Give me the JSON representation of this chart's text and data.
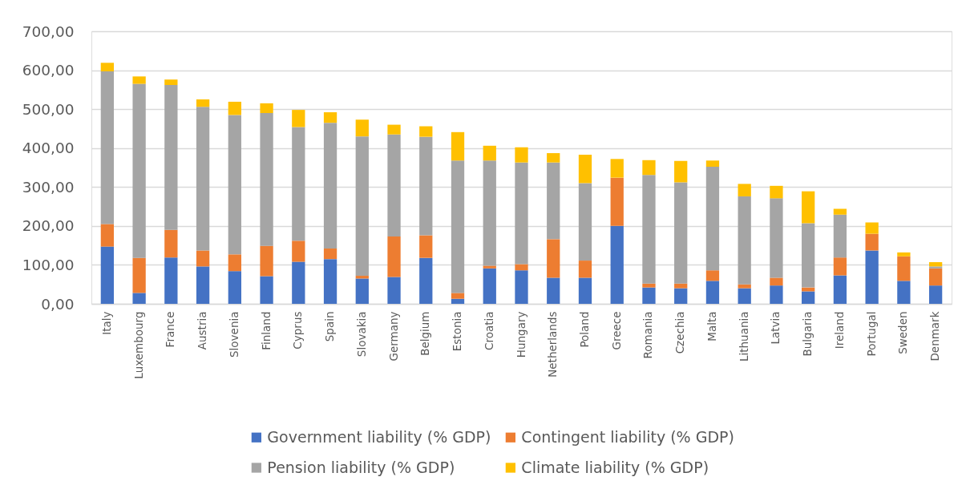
{
  "chart_data": {
    "type": "bar",
    "stacked": true,
    "categories": [
      "Italy",
      "Luxembourg",
      "France",
      "Austria",
      "Slovenia",
      "Finland",
      "Cyprus",
      "Spain",
      "Slovakia",
      "Germany",
      "Belgium",
      "Estonia",
      "Croatia",
      "Hungary",
      "Netherlands",
      "Poland",
      "Greece",
      "Romania",
      "Czechia",
      "Malta",
      "Lithuania",
      "Latvia",
      "Bulgaria",
      "Ireland",
      "Portugal",
      "Sweden",
      "Denmark"
    ],
    "series": [
      {
        "name": "Government liability (% GDP)",
        "color": "#4472c4",
        "values": [
          147,
          28,
          119,
          96,
          84,
          71,
          108,
          115,
          65,
          69,
          118,
          13,
          91,
          86,
          67,
          67,
          200,
          42,
          40,
          59,
          40,
          47,
          32,
          73,
          137,
          59,
          47
        ]
      },
      {
        "name": "Contingent liability (% GDP)",
        "color": "#ed7d31",
        "values": [
          58,
          90,
          71,
          41,
          43,
          78,
          54,
          27,
          7,
          104,
          58,
          15,
          7,
          16,
          99,
          44,
          124,
          10,
          12,
          27,
          10,
          20,
          10,
          46,
          43,
          63,
          44
        ]
      },
      {
        "name": "Pension liability (% GDP)",
        "color": "#a5a5a5",
        "values": [
          392,
          447,
          372,
          369,
          358,
          341,
          292,
          323,
          358,
          262,
          253,
          340,
          270,
          261,
          197,
          199,
          null,
          279,
          260,
          266,
          226,
          204,
          165,
          110,
          null,
          null,
          5
        ]
      },
      {
        "name": "Climate liability (% GDP)",
        "color": "#ffc000",
        "values": [
          22,
          19,
          14,
          19,
          34,
          25,
          44,
          27,
          43,
          25,
          27,
          73,
          38,
          39,
          24,
          73,
          48,
          38,
          55,
          16,
          32,
          32,
          82,
          15,
          29,
          10,
          11
        ]
      }
    ],
    "ylim": [
      0,
      700
    ],
    "yticks": [
      {
        "value": 0,
        "label": "0,00"
      },
      {
        "value": 100,
        "label": "100,00"
      },
      {
        "value": 200,
        "label": "200,00"
      },
      {
        "value": 300,
        "label": "300,00"
      },
      {
        "value": 400,
        "label": "400,00"
      },
      {
        "value": 500,
        "label": "500,00"
      },
      {
        "value": 600,
        "label": "600,00"
      },
      {
        "value": 700,
        "label": "700,00"
      }
    ],
    "grid": "y",
    "legend": "bottom"
  }
}
